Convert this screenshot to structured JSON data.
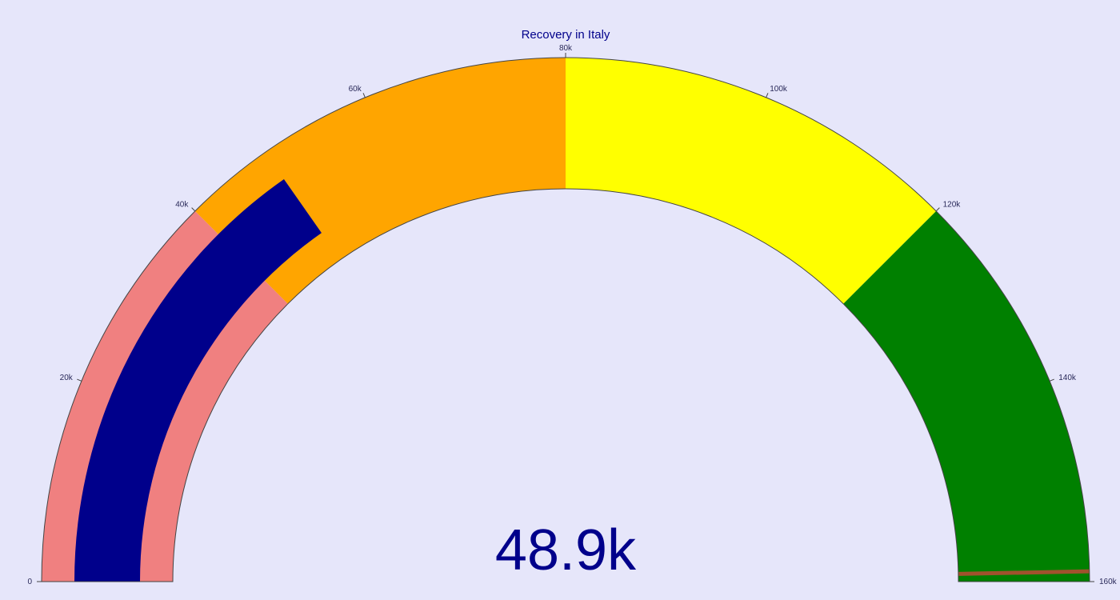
{
  "chart_data": {
    "type": "gauge",
    "title": "Recovery in Italy",
    "value": 48900,
    "value_label": "48.9k",
    "threshold": 159000,
    "range": [
      0,
      160000
    ],
    "tick_values": [
      0,
      20000,
      40000,
      60000,
      80000,
      100000,
      120000,
      140000,
      160000
    ],
    "tick_labels": [
      "0",
      "20k",
      "40k",
      "60k",
      "80k",
      "100k",
      "120k",
      "140k",
      "160k"
    ],
    "steps": [
      {
        "range": [
          0,
          40000
        ],
        "color": "#f08080"
      },
      {
        "range": [
          40000,
          80000
        ],
        "color": "#ffa500"
      },
      {
        "range": [
          80000,
          120000
        ],
        "color": "#ffff00"
      },
      {
        "range": [
          120000,
          160000
        ],
        "color": "#008000"
      }
    ],
    "bar_color": "#00008b",
    "threshold_color": "#a0522d",
    "text_color": "#00008b",
    "background_color": "#e6e6fa"
  }
}
